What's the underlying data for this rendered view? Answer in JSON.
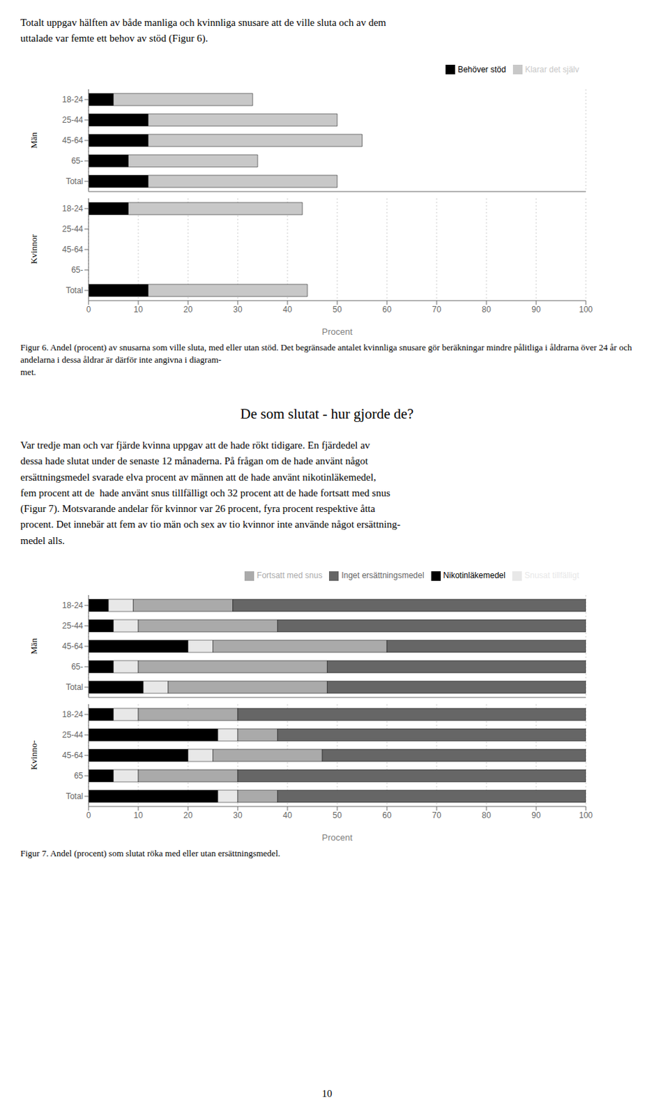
{
  "annotations": [
    [
      "Totalt uppgav hälften av både manliga och kvinnliga snusare att de ville sluta och av dem",
      "uttalade var femte ett behov av stöd (Figur 6)."
    ],
    [
      "De som slutat - hur gjorde de?"
    ],
    [
      "Var tredje man och var fjärde kvinna uppgav att de hade rökt tidigare. En fjärdedel av",
      "dessa hade slutat under de senaste 12 månaderna. På frågan om de hade använt något",
      "ersättningsmedel svarade elva procent av männen att de hade använt nikotinläkemedel,",
      "fem procent att de  hade använt snus tillfälligt och 32 procent att de hade fortsatt med snus",
      "(Figur 7). Motsvarande andelar för kvinnor var 26 procent, fyra procent respektive åtta",
      "procent. Det innebär att fem av tio män och sex av tio kvinnor inte använde något ersättning-",
      "medel alls."
    ],
    [
      "10"
    ]
  ],
  "chart_data": [
    {
      "type": "bar",
      "orientation": "horizontal",
      "stacked": true,
      "title": "Figur 6. Andel (procent) av snusarna som ville sluta, med eller utan stöd. Det begränsade antalet kvinnliga snusare gör beräkningar mindre pålitliga i åldrarna över 24 år och andelarna i dessa åldrar är därför inte angivna i diagram-\nmet.",
      "annotations": [
        "Män",
        "Kvinnor"
      ],
      "categories": [
        "18-24",
        "25-44",
        "45-64",
        "65-",
        "Total",
        "18-24",
        "25-44",
        "45-64",
        "65-",
        "Total"
      ],
      "series": [
        {
          "name": "Behöver stöd",
          "color": "#000000",
          "values": [
            5,
            12,
            12,
            8,
            12,
            8,
            0,
            0,
            0,
            12
          ]
        },
        {
          "name": "Klarar det själv",
          "color": "#c8c8c8",
          "values": [
            28,
            38,
            43,
            26,
            38,
            35,
            0,
            0,
            0,
            32
          ]
        }
      ],
      "xlabel": "Procent",
      "xlim": [
        0,
        100
      ],
      "xticks": [
        0,
        10,
        20,
        30,
        40,
        50,
        60,
        70,
        80,
        90,
        100
      ],
      "grid": true,
      "legend": "upper right"
    },
    {
      "type": "bar",
      "orientation": "horizontal",
      "stacked": true,
      "title": "Figur 7. Andel (procent) som slutat röka med eller utan ersättningsmedel.",
      "annotations": [
        "Män",
        "Kvinno-"
      ],
      "categories": [
        "18-24",
        "25-44",
        "45-64",
        "65-",
        "Total",
        "18-24",
        "25-44",
        "45-64",
        "65",
        "Total"
      ],
      "series": [
        {
          "name": "Nikotinläkemedel",
          "color": "#000000",
          "values": [
            4,
            5,
            20,
            5,
            11,
            5,
            26,
            20,
            5,
            26
          ]
        },
        {
          "name": "Snusat tillfälligt",
          "color": "#e8e8e8",
          "values": [
            5,
            5,
            5,
            5,
            5,
            5,
            4,
            5,
            5,
            4
          ]
        },
        {
          "name": "Fortsatt med snus",
          "color": "#aaaaaa",
          "values": [
            20,
            28,
            35,
            38,
            32,
            20,
            8,
            22,
            20,
            8
          ]
        },
        {
          "name": "Inget ersättningsmedel",
          "color": "#666666",
          "values": [
            71,
            62,
            40,
            52,
            52,
            70,
            62,
            53,
            70,
            62
          ]
        }
      ],
      "xlabel": "Procent",
      "xlim": [
        0,
        100
      ],
      "xticks": [
        0,
        10,
        20,
        30,
        40,
        50,
        60,
        70,
        80,
        90,
        100
      ],
      "grid": true,
      "legend": "upper right"
    }
  ]
}
